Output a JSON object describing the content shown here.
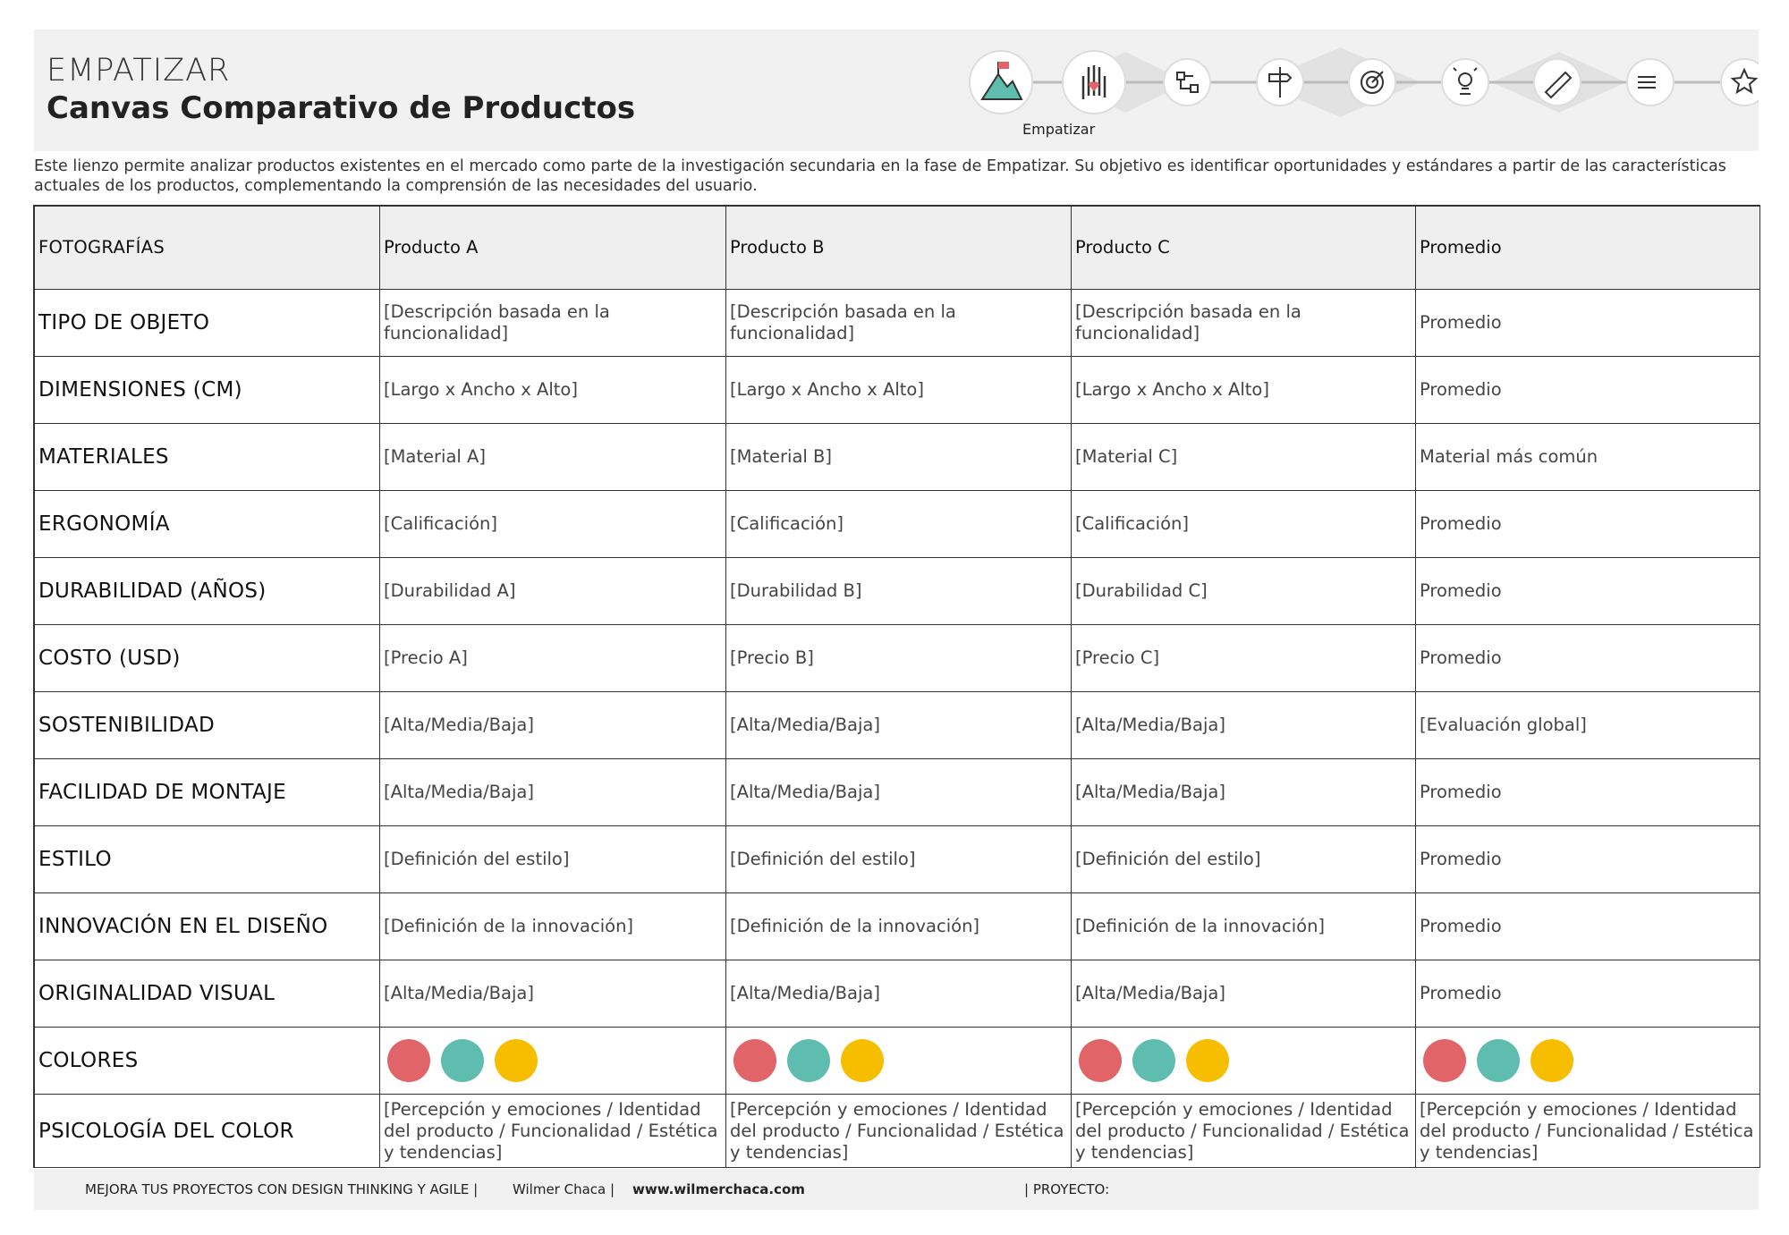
{
  "header": {
    "phase": "EMPATIZAR",
    "title": "Canvas Comparativo de Productos",
    "active_stage": "Empatizar"
  },
  "description": "Este lienzo permite analizar productos existentes en el mercado como parte de la investigación secundaria en la fase de Empatizar. Su objetivo es identificar oportunidades y estándares a partir de las características actuales de los productos, complementando la comprensión de las necesidades del usuario.",
  "table": {
    "columns": [
      "FOTOGRAFÍAS",
      "Producto A",
      "Producto B",
      "Producto C",
      "Promedio"
    ],
    "rows": [
      {
        "label": "TIPO DE OBJETO",
        "cells": [
          "[Descripción basada en la funcionalidad]",
          "[Descripción basada en la funcionalidad]",
          "[Descripción basada en la funcionalidad]",
          "Promedio"
        ]
      },
      {
        "label": "DIMENSIONES (CM)",
        "cells": [
          "[Largo x Ancho x Alto]",
          "[Largo x Ancho x Alto]",
          "[Largo x Ancho x Alto]",
          "Promedio"
        ]
      },
      {
        "label": "MATERIALES",
        "cells": [
          "[Material A]",
          "[Material B]",
          "[Material C]",
          "Material más común"
        ]
      },
      {
        "label": "ERGONOMÍA",
        "cells": [
          "[Calificación]",
          "[Calificación]",
          "[Calificación]",
          "Promedio"
        ]
      },
      {
        "label": "DURABILIDAD (AÑOS)",
        "cells": [
          "[Durabilidad A]",
          "[Durabilidad B]",
          "[Durabilidad C]",
          "Promedio"
        ]
      },
      {
        "label": "COSTO (USD)",
        "cells": [
          "[Precio A]",
          "[Precio B]",
          "[Precio C]",
          "Promedio"
        ]
      },
      {
        "label": "SOSTENIBILIDAD",
        "cells": [
          "[Alta/Media/Baja]",
          "[Alta/Media/Baja]",
          "[Alta/Media/Baja]",
          "[Evaluación global]"
        ]
      },
      {
        "label": "FACILIDAD DE MONTAJE",
        "cells": [
          "[Alta/Media/Baja]",
          "[Alta/Media/Baja]",
          "[Alta/Media/Baja]",
          "Promedio"
        ]
      },
      {
        "label": "ESTILO",
        "cells": [
          "[Definición del estilo]",
          "[Definición del estilo]",
          "[Definición del estilo]",
          "Promedio"
        ]
      },
      {
        "label": "INNOVACIÓN EN EL DISEÑO",
        "cells": [
          "[Definición de la innovación]",
          "[Definición de la innovación]",
          "[Definición de la innovación]",
          "Promedio"
        ]
      },
      {
        "label": "ORIGINALIDAD VISUAL",
        "cells": [
          "[Alta/Media/Baja]",
          "[Alta/Media/Baja]",
          "[Alta/Media/Baja]",
          "Promedio"
        ]
      },
      {
        "label": "COLORES",
        "colors": [
          "#e06468",
          "#5fbdaf",
          "#f7be00"
        ]
      },
      {
        "label": "PSICOLOGÍA DEL COLOR",
        "cells": [
          "[Percepción y emociones / Identidad del producto / Funcionalidad / Estética y tendencias]",
          "[Percepción y emociones / Identidad del producto / Funcionalidad / Estética y tendencias]",
          "[Percepción y emociones / Identidad del producto / Funcionalidad / Estética y tendencias]",
          "[Percepción y emociones / Identidad del producto / Funcionalidad / Estética y tendencias]"
        ]
      }
    ]
  },
  "footer": {
    "tagline": "MEJORA TUS PROYECTOS CON DESIGN THINKING Y AGILE  |",
    "author": "Wilmer Chaca  |",
    "website": "www.wilmerchaca.com",
    "project": "| PROYECTO:"
  }
}
